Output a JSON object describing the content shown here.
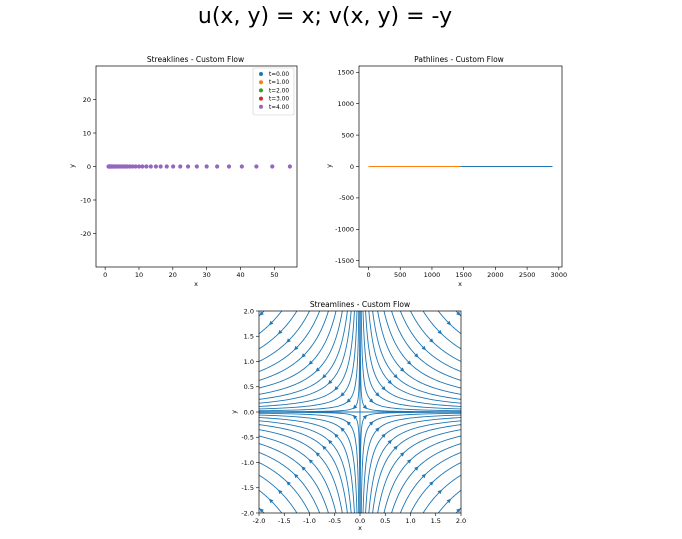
{
  "figure": {
    "suptitle": "u(x, y) = x; v(x, y) = -y"
  },
  "chart_data": [
    {
      "type": "scatter",
      "title": "Streaklines - Custom Flow",
      "xlabel": "x",
      "ylabel": "y",
      "xlim": [
        -2.7,
        56.7
      ],
      "ylim": [
        -30,
        30
      ],
      "xticks": [
        0,
        10,
        20,
        30,
        40,
        50
      ],
      "yticks": [
        -20,
        -10,
        0,
        10,
        20
      ],
      "grid": false,
      "legend_position": "upper right",
      "series": [
        {
          "name": "t=0.00",
          "color": "#1f77b4"
        },
        {
          "name": "t=1.00",
          "color": "#ff7f0e"
        },
        {
          "name": "t=2.00",
          "color": "#2ca02c"
        },
        {
          "name": "t=3.00",
          "color": "#d62728"
        },
        {
          "name": "t=4.00",
          "color": "#9467bd"
        }
      ],
      "points": {
        "x": [
          1.0,
          1.1,
          1.2,
          1.35,
          1.5,
          1.65,
          1.82,
          2.0,
          2.2,
          2.45,
          2.7,
          3.0,
          3.3,
          3.65,
          4.0,
          4.45,
          4.9,
          5.4,
          6.0,
          6.6,
          7.3,
          8.1,
          9.0,
          10.0,
          11.0,
          12.2,
          13.5,
          15.0,
          16.4,
          18.2,
          20.1,
          22.2,
          24.5,
          27.1,
          30.0,
          33.1,
          36.6,
          40.4,
          44.7,
          49.4,
          54.6
        ],
        "y": [
          0,
          0,
          0,
          0,
          0,
          0,
          0,
          0,
          0,
          0,
          0,
          0,
          0,
          0,
          0,
          0,
          0,
          0,
          0,
          0,
          0,
          0,
          0,
          0,
          0,
          0,
          0,
          0,
          0,
          0,
          0,
          0,
          0,
          0,
          0,
          0,
          0,
          0,
          0,
          0,
          0
        ]
      }
    },
    {
      "type": "line",
      "title": "Pathlines - Custom Flow",
      "xlabel": "x",
      "ylabel": "y",
      "xlim": [
        -150,
        3050
      ],
      "ylim": [
        -1600,
        1600
      ],
      "xticks": [
        0,
        500,
        1000,
        1500,
        2000,
        2500,
        3000
      ],
      "yticks": [
        -1500,
        -1000,
        -500,
        0,
        500,
        1000,
        1500
      ],
      "grid": false,
      "series": [
        {
          "color": "#1f77b4",
          "x": [
            0,
            2900
          ],
          "y": [
            0,
            0
          ]
        },
        {
          "color": "#ff7f0e",
          "x": [
            0,
            1450
          ],
          "y": [
            0,
            0
          ]
        }
      ]
    },
    {
      "type": "streamplot",
      "title": "Streamlines - Custom Flow",
      "xlabel": "x",
      "ylabel": "y",
      "xlim": [
        -2.0,
        2.0
      ],
      "ylim": [
        -2.0,
        2.0
      ],
      "xticks": [
        -2.0,
        -1.5,
        -1.0,
        -0.5,
        0.0,
        0.5,
        1.0,
        1.5,
        2.0
      ],
      "yticks": [
        -2.0,
        -1.5,
        -1.0,
        -0.5,
        0.0,
        0.5,
        1.0,
        1.5,
        2.0
      ],
      "color": "#1f77b4",
      "field": {
        "u": "x",
        "v": "-y"
      },
      "streamline_constants": [
        0.01,
        0.05,
        0.12,
        0.22,
        0.35,
        0.5,
        0.7,
        0.95,
        1.25,
        1.6,
        2.0,
        2.5,
        3.1,
        3.8
      ]
    }
  ]
}
